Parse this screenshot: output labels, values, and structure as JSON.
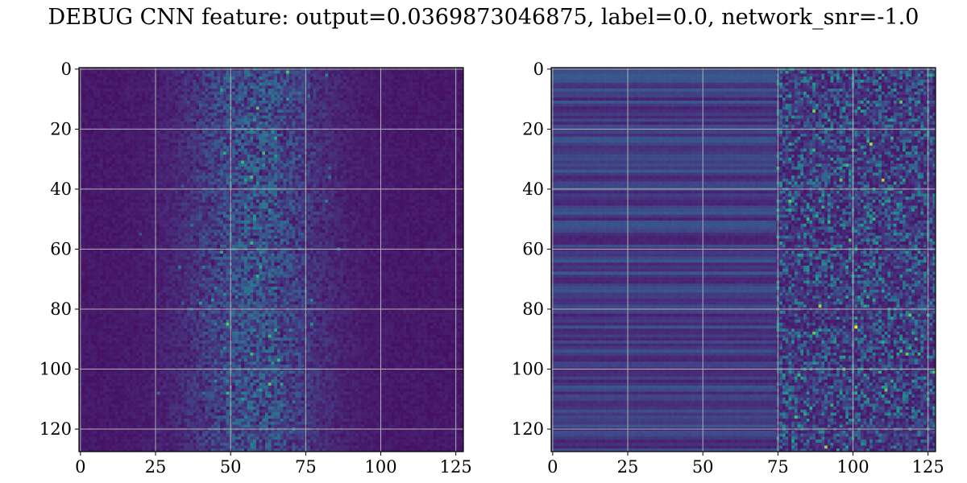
{
  "chart_data": {
    "title": "DEBUG CNN feature: output=0.0369873046875, label=0.0, network_snr=-1.0",
    "colormap": "viridis",
    "grid": true,
    "panels": [
      {
        "type": "heatmap",
        "rows": 128,
        "cols": 128,
        "xlim": [
          0,
          127
        ],
        "ylim": [
          127,
          0
        ],
        "xticks": [
          0,
          25,
          50,
          75,
          100,
          125
        ],
        "yticks": [
          0,
          20,
          40,
          60,
          80,
          100,
          120
        ],
        "pattern": "central-band",
        "band_center_col": 58
      },
      {
        "type": "heatmap",
        "rows": 128,
        "cols": 128,
        "xlim": [
          0,
          127
        ],
        "ylim": [
          127,
          0
        ],
        "xticks": [
          0,
          25,
          50,
          75,
          100,
          125
        ],
        "yticks": [
          0,
          20,
          40,
          60,
          80,
          100,
          120
        ],
        "pattern": "right-noise-left-stripes",
        "transition_col": 75
      }
    ]
  }
}
